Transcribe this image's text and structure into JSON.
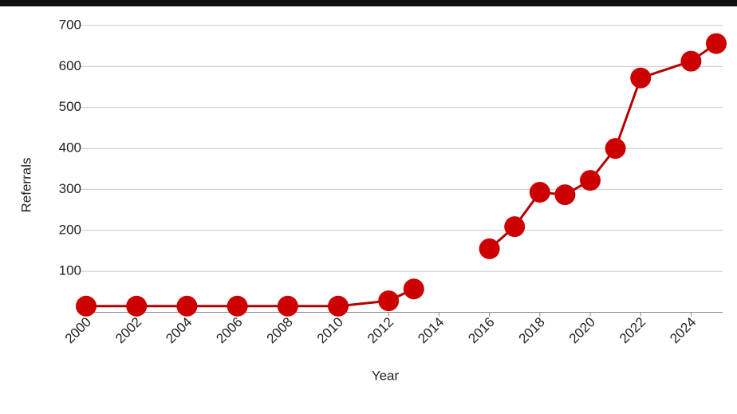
{
  "chart_data": {
    "type": "line",
    "x_label": "Year",
    "y_label": "Referrals",
    "x": [
      2000,
      2002,
      2004,
      2006,
      2008,
      2010,
      2012,
      2013,
      2014,
      2016,
      2017,
      2018,
      2019,
      2020,
      2021,
      2022,
      2024,
      2025
    ],
    "series": [
      {
        "name": "Referrals",
        "color": "#cc0000",
        "values": [
          15,
          15,
          15,
          15,
          15,
          15,
          28,
          57,
          null,
          155,
          209,
          293,
          287,
          322,
          400,
          572,
          613,
          656
        ]
      }
    ],
    "xlim": [
      2000,
      2025
    ],
    "xticks": [
      2000,
      2002,
      2004,
      2006,
      2008,
      2010,
      2012,
      2014,
      2016,
      2018,
      2020,
      2022,
      2024
    ],
    "ylim": [
      0,
      700
    ],
    "yticks": [
      100,
      200,
      300,
      400,
      500,
      600,
      700
    ],
    "grid": true
  }
}
